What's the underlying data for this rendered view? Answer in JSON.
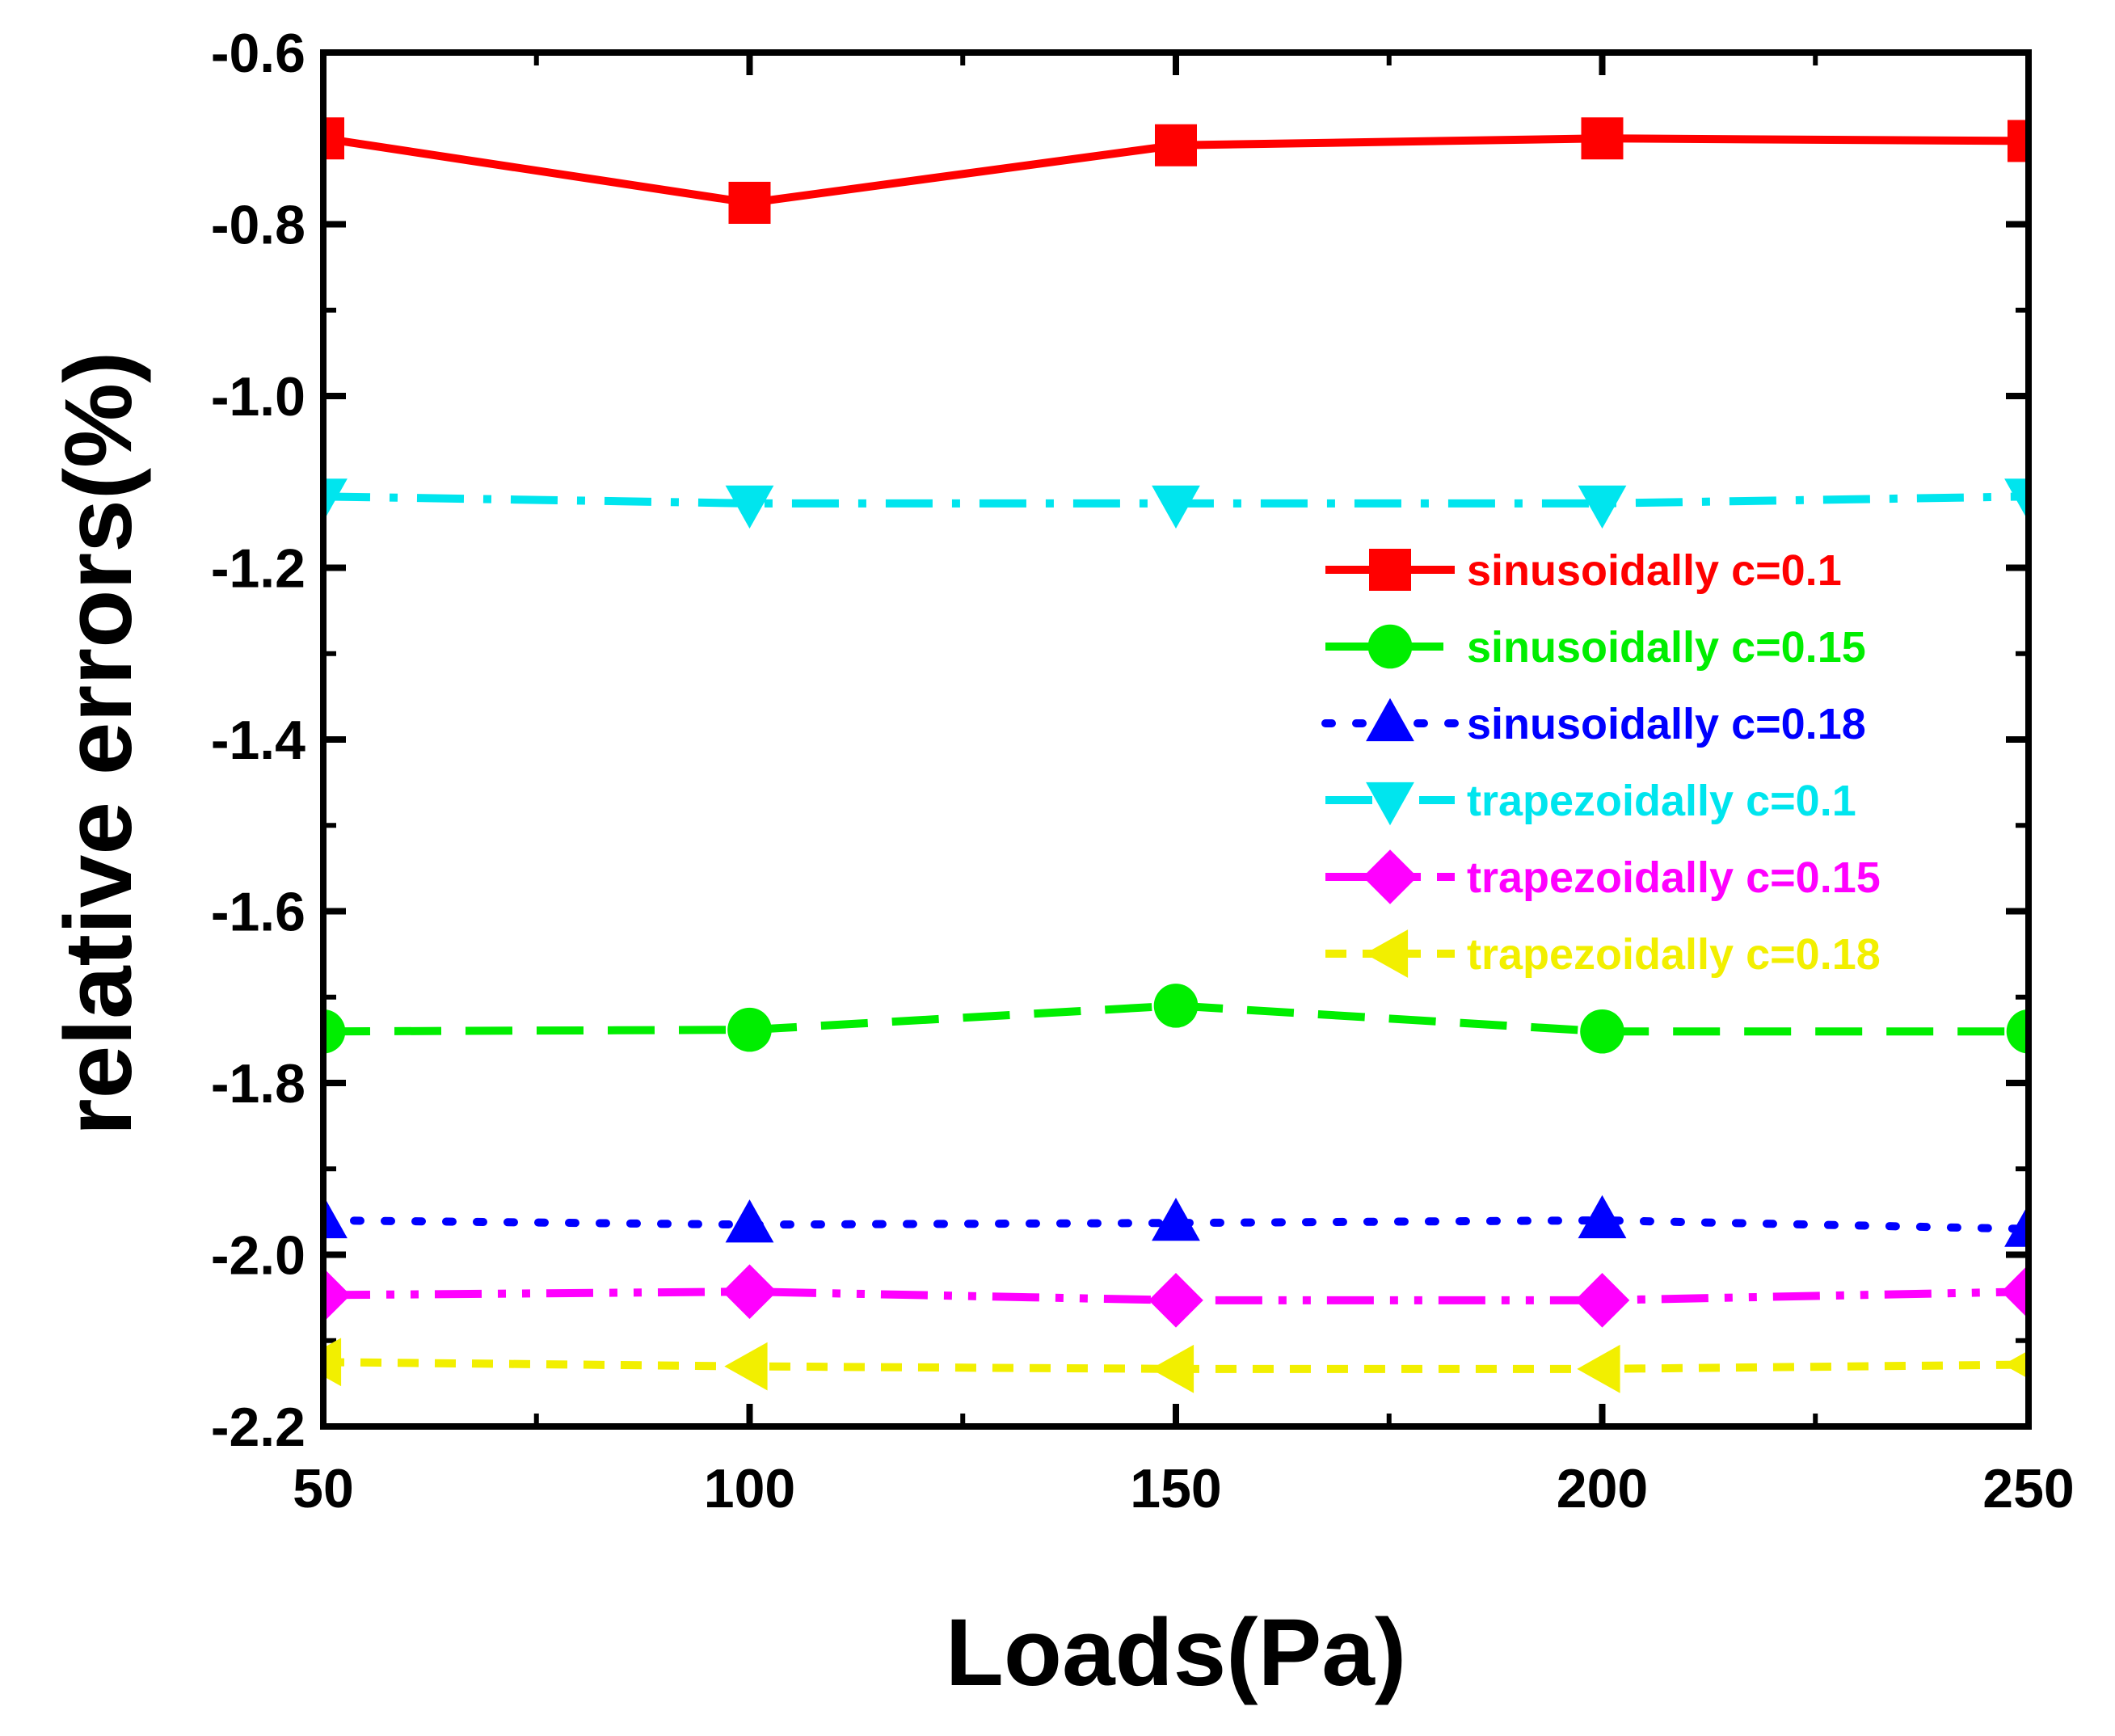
{
  "chart_data": {
    "type": "line",
    "title": "",
    "xlabel": "Loads(Pa)",
    "ylabel": "relative errors(%)",
    "xlim": [
      50,
      250
    ],
    "ylim": [
      -2.2,
      -0.6
    ],
    "xticks": [
      50,
      100,
      150,
      200,
      250
    ],
    "xtick_labels": [
      "50",
      "100",
      "150",
      "200",
      "250"
    ],
    "yticks": [
      -0.6,
      -0.8,
      -1.0,
      -1.2,
      -1.4,
      -1.6,
      -1.8,
      -2.0,
      -2.2
    ],
    "ytick_labels": [
      "-0.6",
      "-0.8",
      "-1.0",
      "-1.2",
      "-1.4",
      "-1.6",
      "-1.8",
      "-2.0",
      "-2.2"
    ],
    "grid": false,
    "legend_position": "right",
    "x": [
      50,
      100,
      150,
      200,
      250
    ],
    "series": [
      {
        "name": "sinusoidally c=0.1",
        "values": [
          -0.7,
          -0.775,
          -0.708,
          -0.7,
          -0.703
        ],
        "color": "#ff0000",
        "marker": "square",
        "dash": "solid"
      },
      {
        "name": "sinusoidally c=0.15",
        "values": [
          -1.74,
          -1.738,
          -1.71,
          -1.74,
          -1.74
        ],
        "color": "#00ee00",
        "marker": "circle",
        "dash": "dash"
      },
      {
        "name": "sinusoidally c=0.18",
        "values": [
          -1.96,
          -1.965,
          -1.963,
          -1.96,
          -1.97
        ],
        "color": "#0000ff",
        "marker": "triangle-up",
        "dash": "dot"
      },
      {
        "name": "trapezoidally c=0.1",
        "values": [
          -1.117,
          -1.125,
          -1.125,
          -1.125,
          -1.117
        ],
        "color": "#00e5ee",
        "marker": "triangle-down",
        "dash": "dashdot"
      },
      {
        "name": "trapezoidally c=0.15",
        "values": [
          -2.047,
          -2.043,
          -2.053,
          -2.053,
          -2.043
        ],
        "color": "#ff00ff",
        "marker": "diamond",
        "dash": "dashdotdot"
      },
      {
        "name": "trapezoidally c=0.18",
        "values": [
          -2.125,
          -2.13,
          -2.133,
          -2.133,
          -2.128
        ],
        "color": "#f2ef00",
        "marker": "triangle-left",
        "dash": "shortdash"
      }
    ]
  }
}
